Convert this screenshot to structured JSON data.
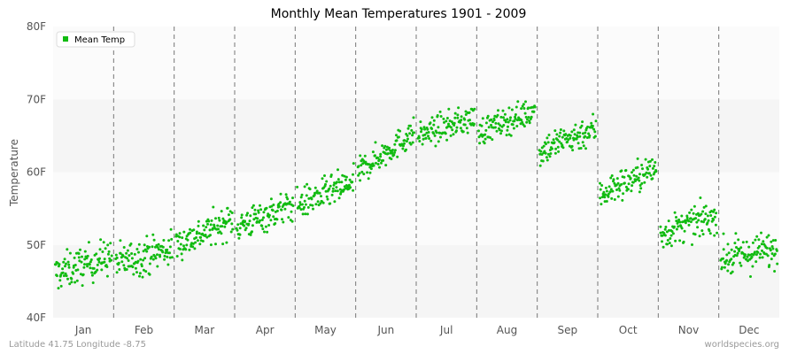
{
  "chart_data": {
    "type": "scatter",
    "title": "Monthly Mean Temperatures 1901 - 2009",
    "ylabel": "Temperature",
    "xlabel": "",
    "yticks": [
      "40F",
      "50F",
      "60F",
      "70F",
      "80F"
    ],
    "ylim": [
      40,
      80
    ],
    "months": [
      "Jan",
      "Feb",
      "Mar",
      "Apr",
      "May",
      "Jun",
      "Jul",
      "Aug",
      "Sep",
      "Oct",
      "Nov",
      "Dec"
    ],
    "legend": {
      "label": "Mean Temp",
      "position": "top-left"
    },
    "series_color": "#11bb11",
    "points_per_month": 109,
    "monthly_ranges": [
      {
        "month": "Jan",
        "start": 46.0,
        "end": 48.5,
        "spread": 4.0
      },
      {
        "month": "Feb",
        "start": 47.5,
        "end": 49.5,
        "spread": 4.0
      },
      {
        "month": "Mar",
        "start": 50.0,
        "end": 53.5,
        "spread": 3.5
      },
      {
        "month": "Apr",
        "start": 52.5,
        "end": 55.5,
        "spread": 3.5
      },
      {
        "month": "May",
        "start": 55.5,
        "end": 58.5,
        "spread": 3.5
      },
      {
        "month": "Jun",
        "start": 60.0,
        "end": 65.5,
        "spread": 3.0
      },
      {
        "month": "Jul",
        "start": 65.0,
        "end": 67.5,
        "spread": 3.0
      },
      {
        "month": "Aug",
        "start": 65.5,
        "end": 68.5,
        "spread": 3.0
      },
      {
        "month": "Sep",
        "start": 63.0,
        "end": 66.0,
        "spread": 3.5
      },
      {
        "month": "Oct",
        "start": 57.0,
        "end": 60.5,
        "spread": 3.5
      },
      {
        "month": "Nov",
        "start": 51.5,
        "end": 54.0,
        "spread": 3.5
      },
      {
        "month": "Dec",
        "start": 48.0,
        "end": 49.5,
        "spread": 4.0
      }
    ],
    "grid": "horizontal bands, dashed vertical month separators"
  },
  "footer": {
    "location": "Latitude 41.75 Longitude -8.75",
    "site": "worldspecies.org"
  }
}
